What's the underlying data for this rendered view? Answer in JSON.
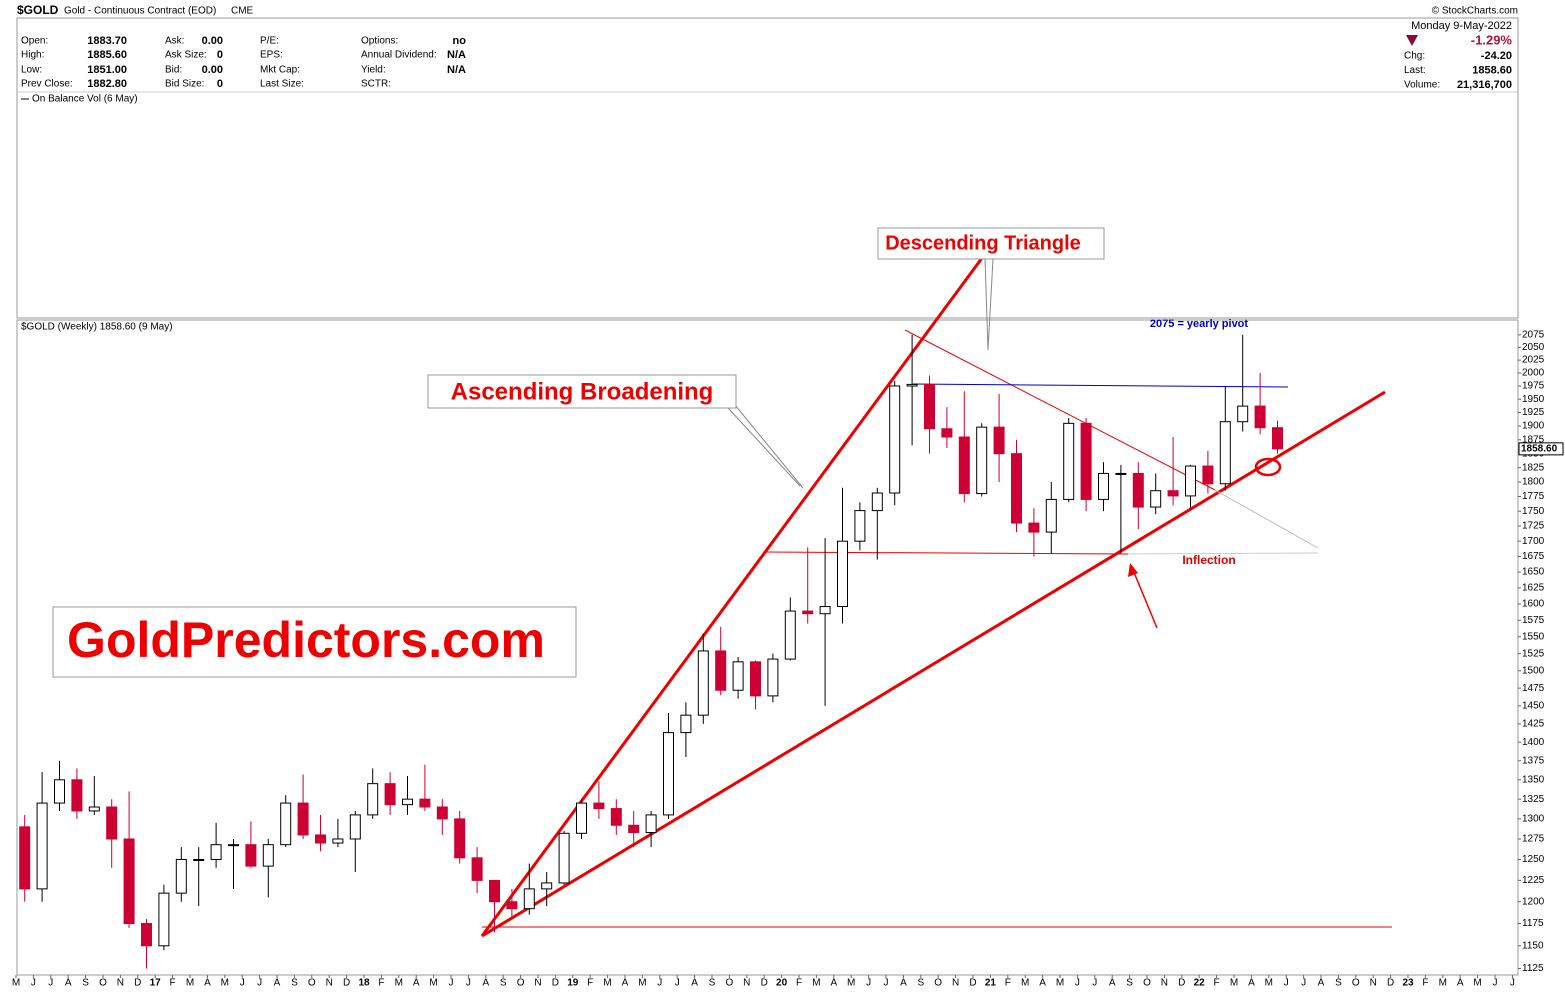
{
  "header": {
    "symbol": "$GOLD",
    "name": "Gold - Continuous Contract (EOD)",
    "exchange": "CME",
    "copyright": "© StockCharts.com"
  },
  "quote": {
    "columns": [
      [
        {
          "label": "Open:",
          "value": "1883.70"
        },
        {
          "label": "High:",
          "value": "1885.60"
        },
        {
          "label": "Low:",
          "value": "1851.00"
        },
        {
          "label": "Prev Close:",
          "value": "1882.80"
        }
      ],
      [
        {
          "label": "Ask:",
          "value": "0.00"
        },
        {
          "label": "Ask Size:",
          "value": "0"
        },
        {
          "label": "Bid:",
          "value": "0.00"
        },
        {
          "label": "Bid Size:",
          "value": "0"
        }
      ],
      [
        {
          "label": "P/E:"
        },
        {
          "label": "EPS:"
        },
        {
          "label": "Mkt Cap:"
        },
        {
          "label": "Last Size:"
        }
      ],
      [
        {
          "label": "Options:",
          "value": "no"
        },
        {
          "label": "Annual Dividend:",
          "value": "N/A"
        },
        {
          "label": "Yield:",
          "value": "N/A"
        },
        {
          "label": "SCTR:"
        }
      ]
    ],
    "date": "Monday  9-May-2022",
    "change_pct": "-1.29%",
    "stats": [
      {
        "label": "Chg:",
        "value": "-24.20"
      },
      {
        "label": "Last:",
        "value": "1858.60"
      },
      {
        "label": "Volume:",
        "value": "21,316,700"
      }
    ]
  },
  "indicator_label": "On Balance Vol (6 May)",
  "chart_data": {
    "type": "candlestick",
    "legend": "$GOLD (Weekly) 1858.60 (9 May)",
    "last_label": "1858.60",
    "log_scale": true,
    "grid": false,
    "up_color": "#ffffff",
    "down_color": "#cc0033",
    "categories": [
      "M",
      "J",
      "J",
      "A",
      "S",
      "O",
      "N",
      "D",
      "17",
      "F",
      "M",
      "A",
      "M",
      "J",
      "J",
      "A",
      "S",
      "O",
      "N",
      "D",
      "18",
      "F",
      "M",
      "A",
      "M",
      "J",
      "J",
      "A",
      "S",
      "O",
      "N",
      "D",
      "19",
      "F",
      "M",
      "A",
      "M",
      "J",
      "J",
      "A",
      "S",
      "O",
      "N",
      "D",
      "20",
      "F",
      "M",
      "A",
      "M",
      "J",
      "J",
      "A",
      "S",
      "O",
      "N",
      "D",
      "21",
      "F",
      "M",
      "A",
      "M",
      "J",
      "J",
      "A",
      "S",
      "O",
      "N",
      "D",
      "22",
      "F",
      "M",
      "A",
      "M",
      "J",
      "J",
      "A",
      "S",
      "O",
      "N",
      "D",
      "23",
      "F",
      "M",
      "A",
      "M",
      "J",
      "J"
    ],
    "open": [
      1290,
      1215,
      1320,
      1350,
      1310,
      1315,
      1275,
      1175,
      1150,
      1210,
      1250,
      1250,
      1268,
      1268,
      1242,
      1268,
      1320,
      1280,
      1270,
      1275,
      1305,
      1345,
      1318,
      1325,
      1315,
      1300,
      1252,
      1225,
      1200,
      1192,
      1215,
      1222,
      1282,
      1320,
      1313,
      1292,
      1283,
      1305,
      1413,
      1437,
      1529,
      1472,
      1513,
      1464,
      1517,
      1589,
      1585,
      1596,
      1700,
      1751,
      1781,
      1975,
      1978,
      1895,
      1880,
      1780,
      1898,
      1850,
      1730,
      1715,
      1770,
      1905,
      1770,
      1815,
      1815,
      1757,
      1785,
      1776,
      1828,
      1797,
      1908,
      1937,
      1897,
      null,
      null,
      null,
      null,
      null,
      null,
      null,
      null,
      null,
      null,
      null,
      null,
      null,
      null
    ],
    "high": [
      1305,
      1360,
      1375,
      1365,
      1355,
      1325,
      1335,
      1180,
      1220,
      1265,
      1265,
      1295,
      1275,
      1297,
      1275,
      1330,
      1357,
      1305,
      1300,
      1310,
      1365,
      1360,
      1355,
      1370,
      1325,
      1310,
      1265,
      1225,
      1215,
      1245,
      1235,
      1285,
      1325,
      1348,
      1325,
      1310,
      1310,
      1440,
      1455,
      1555,
      1565,
      1520,
      1515,
      1525,
      1610,
      1690,
      1705,
      1790,
      1765,
      1790,
      1985,
      2075,
      1995,
      1935,
      1965,
      1905,
      1960,
      1875,
      1755,
      1800,
      1915,
      1915,
      1835,
      1830,
      1835,
      1815,
      1880,
      1830,
      1855,
      1975,
      2075,
      2000,
      1910,
      null,
      null,
      null,
      null,
      null,
      null,
      null,
      null,
      null,
      null,
      null,
      null,
      null,
      null
    ],
    "low": [
      1200,
      1200,
      1310,
      1300,
      1305,
      1240,
      1170,
      1125,
      1145,
      1200,
      1195,
      1240,
      1215,
      1240,
      1205,
      1265,
      1275,
      1260,
      1265,
      1235,
      1300,
      1305,
      1305,
      1310,
      1280,
      1245,
      1210,
      1165,
      1180,
      1185,
      1195,
      1220,
      1275,
      1300,
      1280,
      1265,
      1265,
      1300,
      1380,
      1425,
      1465,
      1460,
      1445,
      1455,
      1515,
      1570,
      1450,
      1570,
      1685,
      1670,
      1760,
      1865,
      1850,
      1860,
      1765,
      1775,
      1800,
      1715,
      1675,
      1680,
      1765,
      1750,
      1750,
      1680,
      1720,
      1745,
      1760,
      1755,
      1780,
      1785,
      1890,
      1885,
      1850,
      null,
      null,
      null,
      null,
      null,
      null,
      null,
      null,
      null,
      null,
      null,
      null,
      null,
      null
    ],
    "close": [
      1215,
      1320,
      1350,
      1310,
      1315,
      1275,
      1175,
      1150,
      1210,
      1250,
      1250,
      1268,
      1268,
      1242,
      1268,
      1320,
      1280,
      1270,
      1275,
      1305,
      1345,
      1318,
      1325,
      1315,
      1300,
      1252,
      1225,
      1200,
      1192,
      1215,
      1222,
      1282,
      1320,
      1313,
      1292,
      1283,
      1305,
      1413,
      1437,
      1529,
      1472,
      1513,
      1464,
      1517,
      1589,
      1585,
      1596,
      1700,
      1751,
      1781,
      1975,
      1978,
      1895,
      1880,
      1780,
      1898,
      1850,
      1730,
      1715,
      1770,
      1905,
      1770,
      1815,
      1815,
      1757,
      1785,
      1776,
      1828,
      1797,
      1908,
      1937,
      1897,
      1858.6,
      null,
      null,
      null,
      null,
      null,
      null,
      null,
      null,
      null,
      null,
      null,
      null,
      null,
      null
    ],
    "ylim": [
      1118,
      2105
    ],
    "yticks": [
      1125,
      1150,
      1175,
      1200,
      1225,
      1250,
      1275,
      1300,
      1325,
      1350,
      1375,
      1400,
      1425,
      1450,
      1475,
      1500,
      1525,
      1550,
      1575,
      1600,
      1625,
      1650,
      1675,
      1700,
      1725,
      1750,
      1775,
      1800,
      1825,
      1850,
      1875,
      1900,
      1925,
      1950,
      1975,
      2000,
      2025,
      2050,
      2075
    ],
    "annotations": {
      "descending": "Descending Triangle",
      "broadening": "Ascending Broadening",
      "inflection": "Inflection",
      "pivot": "2075 = yearly pivot",
      "watermark": "GoldPredictors.com"
    }
  }
}
